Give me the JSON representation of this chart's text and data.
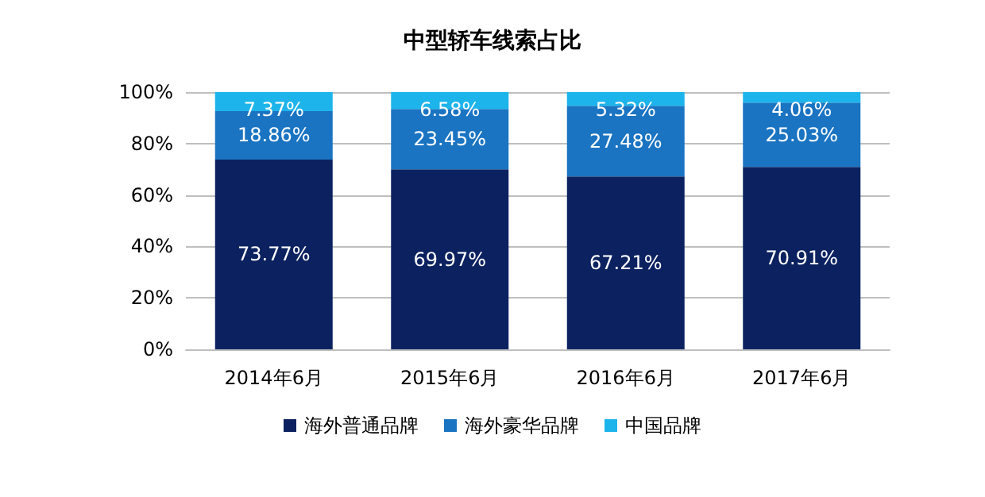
{
  "chart_data": {
    "type": "bar",
    "title": "中型轿车线索占比",
    "stacked": true,
    "categories": [
      "2014年6月",
      "2015年6月",
      "2016年6月",
      "2017年6月"
    ],
    "series": [
      {
        "name": "海外普通品牌",
        "color": "#0c2260",
        "values": [
          73.77,
          69.97,
          67.21,
          70.91
        ],
        "value_labels": [
          "73.77%",
          "69.97%",
          "67.21%",
          "70.91%"
        ]
      },
      {
        "name": "海外豪华品牌",
        "color": "#1a74c2",
        "values": [
          18.86,
          23.45,
          27.48,
          25.03
        ],
        "value_labels": [
          "18.86%",
          "23.45%",
          "27.48%",
          "25.03%"
        ]
      },
      {
        "name": "中国品牌",
        "color": "#1db4ec",
        "values": [
          7.37,
          6.58,
          5.32,
          4.06
        ],
        "value_labels": [
          "7.37%",
          "6.58%",
          "5.32%",
          "4.06%"
        ]
      }
    ],
    "ylim": [
      0,
      100
    ],
    "yticks": [
      {
        "value": 0,
        "label": "0%"
      },
      {
        "value": 20,
        "label": "20%"
      },
      {
        "value": 40,
        "label": "40%"
      },
      {
        "value": 60,
        "label": "60%"
      },
      {
        "value": 80,
        "label": "80%"
      },
      {
        "value": 100,
        "label": "100%"
      }
    ],
    "grid": "y",
    "legend": "bottom"
  }
}
